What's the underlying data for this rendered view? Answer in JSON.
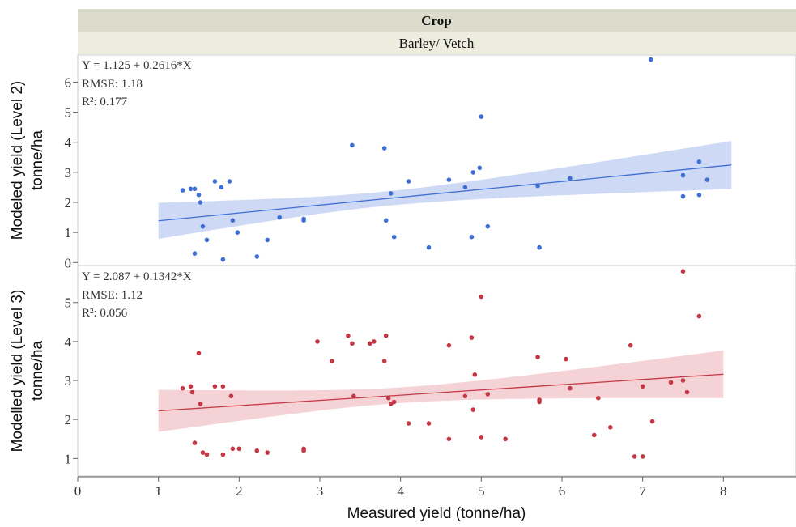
{
  "header": {
    "title": "Crop",
    "subtitle": "Barley/ Vetch",
    "title_bg": "#dcdccc",
    "subtitle_bg": "#ececdf"
  },
  "axes": {
    "xlabel": "Measured yield (tonne/ha)",
    "xlim": [
      0,
      8.9
    ],
    "xticks": [
      "0",
      "1",
      "2",
      "3",
      "4",
      "5",
      "6",
      "7",
      "8"
    ]
  },
  "chart_data": [
    {
      "type": "scatter",
      "ylabel_line1": "Modeled yield (Level 2)",
      "ylabel_line2": "tonne/ha",
      "ylim": [
        -0.1,
        6.9
      ],
      "yticks": [
        "0",
        "1",
        "2",
        "3",
        "4",
        "5",
        "6"
      ],
      "equation": "Y = 1.125 + 0.2616*X",
      "rmse": "RMSE: 1.18",
      "r2": "R²: 0.177",
      "color": "#3f6fd4",
      "band_color": "#c9d5f4",
      "intercept": 1.125,
      "slope": 0.2616,
      "fit_range": [
        1.0,
        8.1
      ],
      "ci_left": [
        0.8,
        2.0
      ],
      "ci_right": [
        2.45,
        4.05
      ],
      "ci_min_x": 3.8,
      "ci_min_half": 0.24,
      "points": [
        [
          1.3,
          2.4
        ],
        [
          1.4,
          2.45
        ],
        [
          1.45,
          2.45
        ],
        [
          1.45,
          0.3
        ],
        [
          1.5,
          2.25
        ],
        [
          1.52,
          2.0
        ],
        [
          1.55,
          1.2
        ],
        [
          1.6,
          0.75
        ],
        [
          1.7,
          2.7
        ],
        [
          1.78,
          2.5
        ],
        [
          1.8,
          0.1
        ],
        [
          1.88,
          2.7
        ],
        [
          1.92,
          1.4
        ],
        [
          1.98,
          1.0
        ],
        [
          2.22,
          0.2
        ],
        [
          2.35,
          0.75
        ],
        [
          2.5,
          1.5
        ],
        [
          2.8,
          1.45
        ],
        [
          2.8,
          1.4
        ],
        [
          3.4,
          3.9
        ],
        [
          3.8,
          3.8
        ],
        [
          3.82,
          1.4
        ],
        [
          3.88,
          2.3
        ],
        [
          3.92,
          0.85
        ],
        [
          4.1,
          2.7
        ],
        [
          4.35,
          0.5
        ],
        [
          4.6,
          2.75
        ],
        [
          4.8,
          2.5
        ],
        [
          4.88,
          0.85
        ],
        [
          4.9,
          3.0
        ],
        [
          4.98,
          3.15
        ],
        [
          5.0,
          4.85
        ],
        [
          5.08,
          1.2
        ],
        [
          5.7,
          2.55
        ],
        [
          5.72,
          0.5
        ],
        [
          6.1,
          2.8
        ],
        [
          7.1,
          6.75
        ],
        [
          7.5,
          2.9
        ],
        [
          7.5,
          2.2
        ],
        [
          7.7,
          3.35
        ],
        [
          7.7,
          2.25
        ],
        [
          7.8,
          2.75
        ]
      ]
    },
    {
      "type": "scatter",
      "ylabel_line1": "Modelled yield (Level 3)",
      "ylabel_line2": "tonne/ha",
      "ylim": [
        0.55,
        5.95
      ],
      "yticks": [
        "1",
        "2",
        "3",
        "4",
        "5"
      ],
      "equation": "Y = 2.087 + 0.1342*X",
      "rmse": "RMSE: 1.12",
      "r2": "R²: 0.056",
      "color": "#c43845",
      "band_color": "#f4cdd1",
      "intercept": 2.087,
      "slope": 0.1342,
      "fit_range": [
        1.0,
        8.0
      ],
      "ci_left": [
        1.68,
        2.76
      ],
      "ci_right": [
        2.56,
        3.78
      ],
      "ci_min_x": 4.0,
      "ci_min_half": 0.2,
      "points": [
        [
          1.3,
          2.8
        ],
        [
          1.4,
          2.85
        ],
        [
          1.42,
          2.7
        ],
        [
          1.45,
          1.4
        ],
        [
          1.5,
          3.7
        ],
        [
          1.52,
          2.4
        ],
        [
          1.55,
          1.15
        ],
        [
          1.6,
          1.1
        ],
        [
          1.7,
          2.85
        ],
        [
          1.8,
          2.85
        ],
        [
          1.8,
          1.1
        ],
        [
          1.9,
          2.6
        ],
        [
          1.92,
          1.25
        ],
        [
          2.0,
          1.25
        ],
        [
          2.22,
          1.2
        ],
        [
          2.35,
          1.15
        ],
        [
          2.8,
          1.25
        ],
        [
          2.8,
          1.2
        ],
        [
          2.97,
          4.0
        ],
        [
          3.15,
          3.5
        ],
        [
          3.35,
          4.15
        ],
        [
          3.4,
          3.95
        ],
        [
          3.42,
          2.6
        ],
        [
          3.62,
          3.95
        ],
        [
          3.67,
          4.0
        ],
        [
          3.8,
          3.5
        ],
        [
          3.82,
          4.15
        ],
        [
          3.85,
          2.55
        ],
        [
          3.88,
          2.4
        ],
        [
          3.92,
          2.45
        ],
        [
          4.1,
          1.9
        ],
        [
          4.35,
          1.9
        ],
        [
          4.6,
          3.9
        ],
        [
          4.6,
          1.5
        ],
        [
          4.8,
          2.6
        ],
        [
          4.88,
          4.1
        ],
        [
          4.9,
          2.25
        ],
        [
          4.92,
          3.15
        ],
        [
          5.0,
          5.15
        ],
        [
          5.0,
          1.55
        ],
        [
          5.08,
          2.65
        ],
        [
          5.3,
          1.5
        ],
        [
          5.7,
          3.6
        ],
        [
          5.72,
          2.5
        ],
        [
          5.72,
          2.45
        ],
        [
          6.05,
          3.55
        ],
        [
          6.1,
          2.8
        ],
        [
          6.4,
          1.6
        ],
        [
          6.45,
          2.55
        ],
        [
          6.6,
          1.8
        ],
        [
          6.85,
          3.9
        ],
        [
          6.9,
          1.05
        ],
        [
          7.0,
          2.85
        ],
        [
          7.0,
          1.05
        ],
        [
          7.12,
          1.95
        ],
        [
          7.35,
          2.95
        ],
        [
          7.5,
          5.8
        ],
        [
          7.5,
          3.0
        ],
        [
          7.55,
          2.7
        ],
        [
          7.7,
          4.65
        ]
      ]
    }
  ]
}
